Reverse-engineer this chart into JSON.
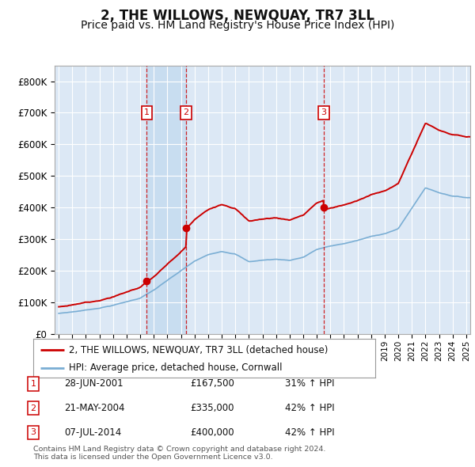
{
  "title": "2, THE WILLOWS, NEWQUAY, TR7 3LL",
  "subtitle": "Price paid vs. HM Land Registry's House Price Index (HPI)",
  "ylim": [
    0,
    850000
  ],
  "yticks": [
    0,
    100000,
    200000,
    300000,
    400000,
    500000,
    600000,
    700000,
    800000
  ],
  "ytick_labels": [
    "£0",
    "£100K",
    "£200K",
    "£300K",
    "£400K",
    "£500K",
    "£600K",
    "£700K",
    "£800K"
  ],
  "bg_color": "#dce8f5",
  "shade_color": "#c8ddf0",
  "grid_color": "#ffffff",
  "sale_color": "#cc0000",
  "hpi_color": "#7aaed4",
  "title_fontsize": 12,
  "subtitle_fontsize": 10,
  "sales": [
    {
      "date_label": "28-JUN-2001",
      "price": 167500,
      "pct": "31%",
      "num": 1,
      "x": 2001.49
    },
    {
      "date_label": "21-MAY-2004",
      "price": 335000,
      "pct": "42%",
      "num": 2,
      "x": 2004.38
    },
    {
      "date_label": "07-JUL-2014",
      "price": 400000,
      "pct": "42%",
      "num": 3,
      "x": 2014.52
    }
  ],
  "legend_sale_label": "2, THE WILLOWS, NEWQUAY, TR7 3LL (detached house)",
  "legend_hpi_label": "HPI: Average price, detached house, Cornwall",
  "footnote": "Contains HM Land Registry data © Crown copyright and database right 2024.\nThis data is licensed under the Open Government Licence v3.0.",
  "xstart": 1995,
  "xend": 2025
}
